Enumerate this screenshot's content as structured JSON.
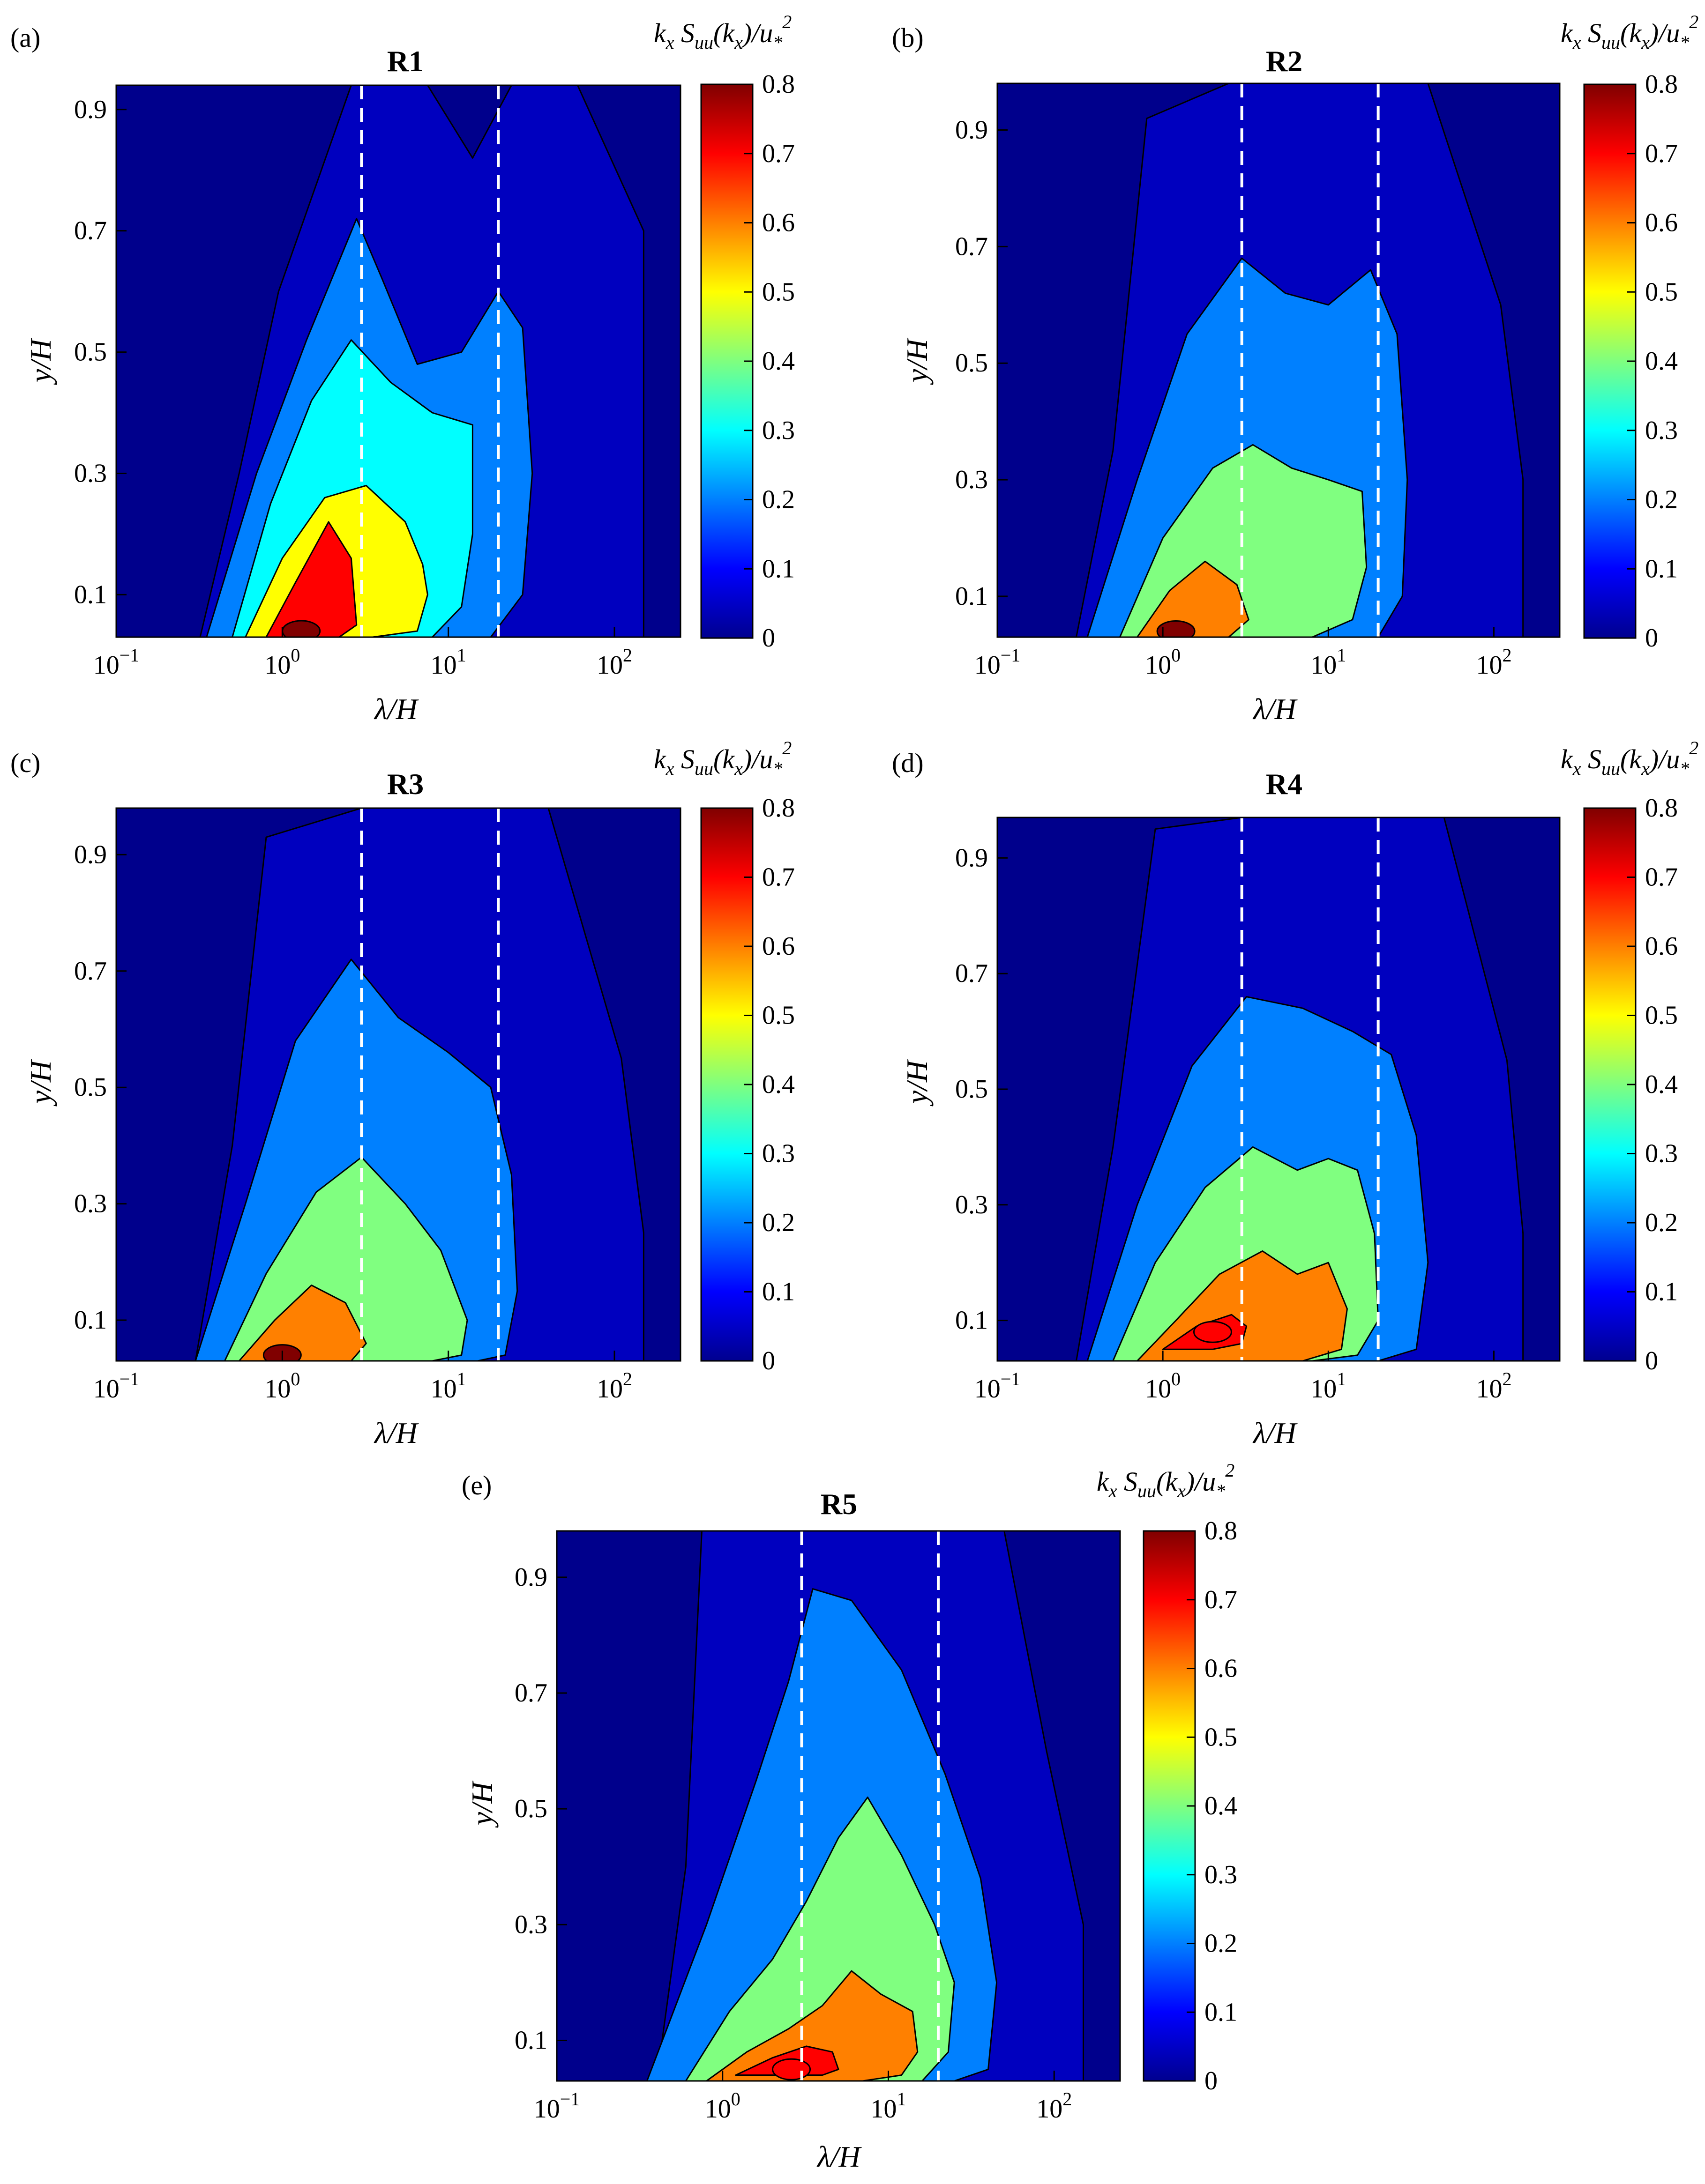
{
  "chart_data": [
    {
      "panel": "(a)",
      "title": "R1",
      "type": "contour",
      "xlabel": "λ/H",
      "ylabel": "y/H",
      "xscale": "log",
      "xlim": [
        0.1,
        250
      ],
      "ylim": [
        0.03,
        0.94
      ],
      "xticks": [
        0.1,
        1,
        10,
        100
      ],
      "xtick_labels": [
        "10^-1",
        "10^0",
        "10^1",
        "10^2"
      ],
      "yticks": [
        0.1,
        0.3,
        0.5,
        0.7,
        0.9
      ],
      "ytick_labels": [
        "0.1",
        "0.3",
        "0.5",
        "0.7",
        "0.9"
      ],
      "reference_lines_x": [
        3,
        20
      ],
      "colorbar": {
        "label": "k_x S_uu(k_x)/u_*^2",
        "range": [
          0,
          0.8
        ],
        "ticks": [
          "0",
          "0.1",
          "0.2",
          "0.3",
          "0.4",
          "0.5",
          "0.6",
          "0.7",
          "0.8"
        ]
      },
      "peak": {
        "x": 1.3,
        "y": 0.04,
        "value": 0.8
      },
      "level_contours": [
        {
          "level": 0.05,
          "x": [
            0.1,
            0.32,
            0.55,
            0.95,
            2.6,
            7.5,
            14,
            24,
            60,
            150,
            150,
            60,
            20,
            5.5,
            1.6,
            0.45,
            0.2,
            0.1,
            0.1
          ],
          "y": [
            0.03,
            0.03,
            0.3,
            0.6,
            0.94,
            0.94,
            0.82,
            0.94,
            0.94,
            0.7,
            0.03,
            0.03,
            0.03,
            0.03,
            0.03,
            0.03,
            0.03,
            0.03,
            0.03
          ]
        },
        {
          "level": 0.2,
          "x": [
            0.35,
            0.7,
            1.4,
            2.8,
            4.0,
            6.5,
            12,
            20,
            28,
            32,
            28,
            18,
            7,
            2.5,
            1.0,
            0.35
          ],
          "y": [
            0.03,
            0.3,
            0.52,
            0.72,
            0.62,
            0.48,
            0.5,
            0.6,
            0.54,
            0.3,
            0.1,
            0.03,
            0.03,
            0.03,
            0.03,
            0.03
          ]
        },
        {
          "level": 0.3,
          "x": [
            0.5,
            0.85,
            1.5,
            2.6,
            4.5,
            8,
            14,
            14,
            12,
            8,
            4,
            1.5,
            0.5
          ],
          "y": [
            0.03,
            0.25,
            0.42,
            0.52,
            0.45,
            0.4,
            0.38,
            0.2,
            0.08,
            0.03,
            0.03,
            0.03,
            0.03
          ]
        },
        {
          "level": 0.5,
          "x": [
            0.6,
            1.0,
            1.8,
            3.2,
            5.5,
            7,
            7.5,
            6.5,
            3.5,
            1.5,
            0.6
          ],
          "y": [
            0.03,
            0.16,
            0.26,
            0.28,
            0.22,
            0.15,
            0.1,
            0.04,
            0.03,
            0.03,
            0.03
          ]
        },
        {
          "level": 0.7,
          "x": [
            0.8,
            1.2,
            1.9,
            2.6,
            2.8,
            2.2,
            1.2,
            0.8
          ],
          "y": [
            0.03,
            0.12,
            0.22,
            0.16,
            0.05,
            0.03,
            0.03,
            0.03
          ]
        }
      ]
    },
    {
      "panel": "(b)",
      "title": "R2",
      "type": "contour",
      "xlabel": "λ/H",
      "ylabel": "y/H",
      "xscale": "log",
      "xlim": [
        0.1,
        250
      ],
      "ylim": [
        0.03,
        0.98
      ],
      "xticks": [
        0.1,
        1,
        10,
        100
      ],
      "xtick_labels": [
        "10^-1",
        "10^0",
        "10^1",
        "10^2"
      ],
      "yticks": [
        0.1,
        0.3,
        0.5,
        0.7,
        0.9
      ],
      "ytick_labels": [
        "0.1",
        "0.3",
        "0.5",
        "0.7",
        "0.9"
      ],
      "reference_lines_x": [
        3,
        20
      ],
      "colorbar": {
        "label": "k_x S_uu(k_x)/u_*^2",
        "range": [
          0,
          0.8
        ],
        "ticks": [
          "0",
          "0.1",
          "0.2",
          "0.3",
          "0.4",
          "0.5",
          "0.6",
          "0.7",
          "0.8"
        ]
      },
      "peak": {
        "x": 1.2,
        "y": 0.04,
        "value": 0.8
      },
      "level_contours": [
        {
          "level": 0.05,
          "x": [
            0.1,
            0.3,
            0.5,
            0.8,
            2.5,
            10,
            40,
            110,
            150,
            150,
            60,
            20,
            5,
            1.5,
            0.4,
            0.2,
            0.1
          ],
          "y": [
            0.03,
            0.03,
            0.35,
            0.92,
            0.98,
            0.98,
            0.98,
            0.6,
            0.3,
            0.03,
            0.03,
            0.03,
            0.03,
            0.03,
            0.03,
            0.03,
            0.03
          ]
        },
        {
          "level": 0.2,
          "x": [
            0.35,
            0.7,
            1.4,
            3.0,
            5.5,
            10,
            18,
            26,
            30,
            28,
            20,
            8,
            2.5,
            0.9,
            0.35
          ],
          "y": [
            0.03,
            0.3,
            0.55,
            0.68,
            0.62,
            0.6,
            0.66,
            0.55,
            0.3,
            0.1,
            0.03,
            0.03,
            0.03,
            0.03,
            0.03
          ]
        },
        {
          "level": 0.4,
          "x": [
            0.55,
            1.0,
            2.0,
            3.5,
            6,
            10,
            16,
            17,
            14,
            8,
            3,
            1.2,
            0.55
          ],
          "y": [
            0.03,
            0.2,
            0.32,
            0.36,
            0.32,
            0.3,
            0.28,
            0.15,
            0.06,
            0.03,
            0.03,
            0.03,
            0.03
          ]
        },
        {
          "level": 0.6,
          "x": [
            0.7,
            1.1,
            1.8,
            2.8,
            3.3,
            2.5,
            1.3,
            0.7
          ],
          "y": [
            0.03,
            0.11,
            0.16,
            0.12,
            0.06,
            0.03,
            0.03,
            0.03
          ]
        }
      ]
    },
    {
      "panel": "(c)",
      "title": "R3",
      "type": "contour",
      "xlabel": "λ/H",
      "ylabel": "y/H",
      "xscale": "log",
      "xlim": [
        0.1,
        250
      ],
      "ylim": [
        0.03,
        0.98
      ],
      "xticks": [
        0.1,
        1,
        10,
        100
      ],
      "xtick_labels": [
        "10^-1",
        "10^0",
        "10^1",
        "10^2"
      ],
      "yticks": [
        0.1,
        0.3,
        0.5,
        0.7,
        0.9
      ],
      "ytick_labels": [
        "0.1",
        "0.3",
        "0.5",
        "0.7",
        "0.9"
      ],
      "reference_lines_x": [
        3,
        20
      ],
      "colorbar": {
        "label": "k_x S_uu(k_x)/u_*^2",
        "range": [
          0,
          0.8
        ],
        "ticks": [
          "0",
          "0.1",
          "0.2",
          "0.3",
          "0.4",
          "0.5",
          "0.6",
          "0.7",
          "0.8"
        ]
      },
      "peak": {
        "x": 1.0,
        "y": 0.04,
        "value": 0.8
      },
      "level_contours": [
        {
          "level": 0.05,
          "x": [
            0.1,
            0.3,
            0.5,
            0.8,
            3,
            10,
            40,
            110,
            150,
            150,
            60,
            20,
            5,
            1.5,
            0.4,
            0.2,
            0.1
          ],
          "y": [
            0.03,
            0.03,
            0.4,
            0.93,
            0.98,
            0.98,
            0.98,
            0.55,
            0.25,
            0.03,
            0.03,
            0.03,
            0.03,
            0.03,
            0.03,
            0.03,
            0.03
          ]
        },
        {
          "level": 0.2,
          "x": [
            0.3,
            0.6,
            1.2,
            2.6,
            5,
            10,
            18,
            24,
            26,
            22,
            15,
            6,
            2,
            0.8,
            0.3
          ],
          "y": [
            0.03,
            0.3,
            0.58,
            0.72,
            0.62,
            0.56,
            0.5,
            0.35,
            0.15,
            0.04,
            0.03,
            0.03,
            0.03,
            0.03,
            0.03
          ]
        },
        {
          "level": 0.4,
          "x": [
            0.45,
            0.8,
            1.6,
            3.0,
            5.5,
            9,
            13,
            12,
            8,
            4,
            1.5,
            0.45
          ],
          "y": [
            0.03,
            0.18,
            0.32,
            0.38,
            0.3,
            0.22,
            0.1,
            0.04,
            0.03,
            0.03,
            0.03,
            0.03
          ]
        },
        {
          "level": 0.6,
          "x": [
            0.55,
            0.9,
            1.5,
            2.4,
            3.2,
            2.6,
            1.4,
            0.55
          ],
          "y": [
            0.03,
            0.1,
            0.16,
            0.13,
            0.06,
            0.03,
            0.03,
            0.03
          ]
        }
      ]
    },
    {
      "panel": "(d)",
      "title": "R4",
      "type": "contour",
      "xlabel": "λ/H",
      "ylabel": "y/H",
      "xscale": "log",
      "xlim": [
        0.1,
        250
      ],
      "ylim": [
        0.03,
        0.97
      ],
      "xticks": [
        0.1,
        1,
        10,
        100
      ],
      "xtick_labels": [
        "10^-1",
        "10^0",
        "10^1",
        "10^2"
      ],
      "yticks": [
        0.1,
        0.3,
        0.5,
        0.7,
        0.9
      ],
      "ytick_labels": [
        "0.1",
        "0.3",
        "0.5",
        "0.7",
        "0.9"
      ],
      "reference_lines_x": [
        3,
        20
      ],
      "colorbar": {
        "label": "k_x S_uu(k_x)/u_*^2",
        "range": [
          0,
          0.8
        ],
        "ticks": [
          "0",
          "0.1",
          "0.2",
          "0.3",
          "0.4",
          "0.5",
          "0.6",
          "0.7",
          "0.8"
        ]
      },
      "peak": {
        "x": 2.0,
        "y": 0.08,
        "value": 0.7
      },
      "level_contours": [
        {
          "level": 0.05,
          "x": [
            0.1,
            0.3,
            0.5,
            0.9,
            3,
            12,
            50,
            120,
            150,
            150,
            60,
            20,
            5,
            1.5,
            0.4,
            0.2,
            0.1
          ],
          "y": [
            0.03,
            0.03,
            0.4,
            0.95,
            0.97,
            0.97,
            0.97,
            0.55,
            0.25,
            0.03,
            0.03,
            0.03,
            0.03,
            0.03,
            0.03,
            0.03,
            0.03
          ]
        },
        {
          "level": 0.2,
          "x": [
            0.35,
            0.7,
            1.5,
            3.2,
            7,
            14,
            24,
            34,
            40,
            34,
            20,
            8,
            2.5,
            0.9,
            0.35
          ],
          "y": [
            0.03,
            0.3,
            0.54,
            0.66,
            0.64,
            0.6,
            0.56,
            0.42,
            0.2,
            0.05,
            0.03,
            0.03,
            0.03,
            0.03,
            0.03
          ]
        },
        {
          "level": 0.4,
          "x": [
            0.5,
            0.9,
            1.8,
            3.5,
            6.5,
            10,
            15,
            19,
            20,
            15,
            8,
            3,
            1.2,
            0.5
          ],
          "y": [
            0.03,
            0.2,
            0.33,
            0.4,
            0.36,
            0.38,
            0.36,
            0.25,
            0.1,
            0.04,
            0.03,
            0.03,
            0.03,
            0.03
          ]
        },
        {
          "level": 0.6,
          "x": [
            0.7,
            1.2,
            2.2,
            4.0,
            6.5,
            10,
            13,
            12,
            7,
            3,
            1.2,
            0.7
          ],
          "y": [
            0.03,
            0.1,
            0.18,
            0.22,
            0.18,
            0.2,
            0.12,
            0.05,
            0.03,
            0.03,
            0.03,
            0.03
          ]
        },
        {
          "level": 0.7,
          "x": [
            1.0,
            1.6,
            2.6,
            3.2,
            3.0,
            2.0,
            1.2,
            1.0
          ],
          "y": [
            0.05,
            0.09,
            0.11,
            0.09,
            0.06,
            0.05,
            0.05,
            0.05
          ]
        }
      ]
    },
    {
      "panel": "(e)",
      "title": "R5",
      "type": "contour",
      "xlabel": "λ/H",
      "ylabel": "y/H",
      "xscale": "log",
      "xlim": [
        0.1,
        250
      ],
      "ylim": [
        0.03,
        0.98
      ],
      "xticks": [
        0.1,
        1,
        10,
        100
      ],
      "xtick_labels": [
        "10^-1",
        "10^0",
        "10^1",
        "10^2"
      ],
      "yticks": [
        0.1,
        0.3,
        0.5,
        0.7,
        0.9
      ],
      "ytick_labels": [
        "0.1",
        "0.3",
        "0.5",
        "0.7",
        "0.9"
      ],
      "reference_lines_x": [
        3,
        20
      ],
      "colorbar": {
        "label": "k_x S_uu(k_x)/u_*^2",
        "range": [
          0,
          0.8
        ],
        "ticks": [
          "0",
          "0.1",
          "0.2",
          "0.3",
          "0.4",
          "0.5",
          "0.6",
          "0.7",
          "0.8"
        ]
      },
      "peak": {
        "x": 2.6,
        "y": 0.05,
        "value": 0.7
      },
      "level_contours": [
        {
          "level": 0.05,
          "x": [
            0.1,
            0.4,
            0.6,
            0.75,
            2.5,
            10,
            50,
            90,
            150,
            150,
            60,
            20,
            5,
            1.5,
            0.5,
            0.2,
            0.1
          ],
          "y": [
            0.03,
            0.03,
            0.4,
            0.98,
            0.98,
            0.98,
            0.98,
            0.6,
            0.3,
            0.03,
            0.03,
            0.03,
            0.03,
            0.03,
            0.03,
            0.03,
            0.03
          ]
        },
        {
          "level": 0.2,
          "x": [
            0.35,
            0.8,
            1.6,
            2.5,
            3.5,
            6,
            12,
            22,
            36,
            45,
            40,
            25,
            8,
            2.5,
            1.0,
            0.35
          ],
          "y": [
            0.03,
            0.3,
            0.55,
            0.72,
            0.88,
            0.86,
            0.74,
            0.56,
            0.38,
            0.2,
            0.05,
            0.03,
            0.03,
            0.03,
            0.03,
            0.03
          ]
        },
        {
          "level": 0.4,
          "x": [
            0.6,
            1.1,
            2.0,
            3.2,
            5,
            7.5,
            12,
            19,
            25,
            23,
            16,
            8,
            3,
            1.3,
            0.6
          ],
          "y": [
            0.03,
            0.15,
            0.24,
            0.34,
            0.45,
            0.52,
            0.42,
            0.3,
            0.2,
            0.08,
            0.03,
            0.03,
            0.03,
            0.03,
            0.03
          ]
        },
        {
          "level": 0.6,
          "x": [
            0.8,
            1.4,
            2.5,
            4,
            6,
            9,
            14,
            15,
            12,
            7,
            3,
            1.5,
            0.8
          ],
          "y": [
            0.03,
            0.08,
            0.12,
            0.16,
            0.22,
            0.18,
            0.15,
            0.08,
            0.04,
            0.03,
            0.03,
            0.03,
            0.03
          ]
        },
        {
          "level": 0.7,
          "x": [
            1.2,
            2.0,
            3.2,
            4.6,
            5.0,
            4.0,
            2.5,
            1.2
          ],
          "y": [
            0.04,
            0.07,
            0.09,
            0.08,
            0.05,
            0.04,
            0.04,
            0.04
          ]
        }
      ]
    }
  ]
}
